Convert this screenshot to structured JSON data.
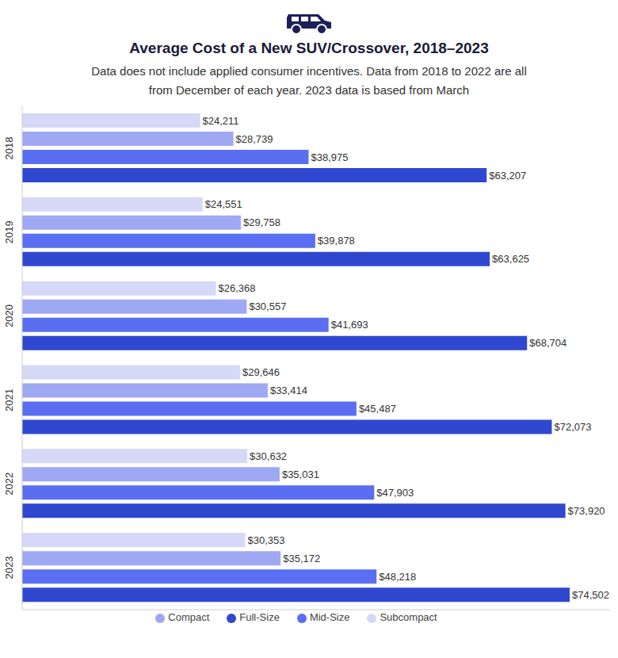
{
  "chart_data": {
    "type": "bar",
    "orientation": "horizontal",
    "title": "Average Cost of a New SUV/Crossover, 2018–2023",
    "subtitle": "Data does not include applied consumer incentives. Data from 2018 to 2022 are all from December of each year. 2023 data is based from March",
    "categories": [
      "2018",
      "2019",
      "2020",
      "2021",
      "2022",
      "2023"
    ],
    "series": [
      {
        "name": "Subcompact",
        "color": "#d5d9f7",
        "values": [
          24211,
          24551,
          26368,
          29646,
          30632,
          30353
        ],
        "value_labels": [
          "$24,211",
          "$24,551",
          "$26,368",
          "$29,646",
          "$30,632",
          "$30,353"
        ]
      },
      {
        "name": "Compact",
        "color": "#9fa8f3",
        "values": [
          28739,
          29758,
          30557,
          33414,
          35031,
          35172
        ],
        "value_labels": [
          "$28,739",
          "$29,758",
          "$30,557",
          "$33,414",
          "$35,031",
          "$35,172"
        ]
      },
      {
        "name": "Mid-Size",
        "color": "#5a6ef2",
        "values": [
          38975,
          39878,
          41693,
          45487,
          47903,
          48218
        ],
        "value_labels": [
          "$38,975",
          "$39,878",
          "$41,693",
          "$45,487",
          "$47,903",
          "$48,218"
        ]
      },
      {
        "name": "Full-Size",
        "color": "#2f48cf",
        "values": [
          63207,
          63625,
          68704,
          72073,
          73920,
          74502
        ],
        "value_labels": [
          "$63,207",
          "$63,625",
          "$68,704",
          "$72,073",
          "$73,920",
          "$74,502"
        ]
      }
    ],
    "xlim": [
      0,
      80000
    ],
    "data_labels": true,
    "legend": "bottom",
    "tick_labels": "y",
    "grid": false
  }
}
